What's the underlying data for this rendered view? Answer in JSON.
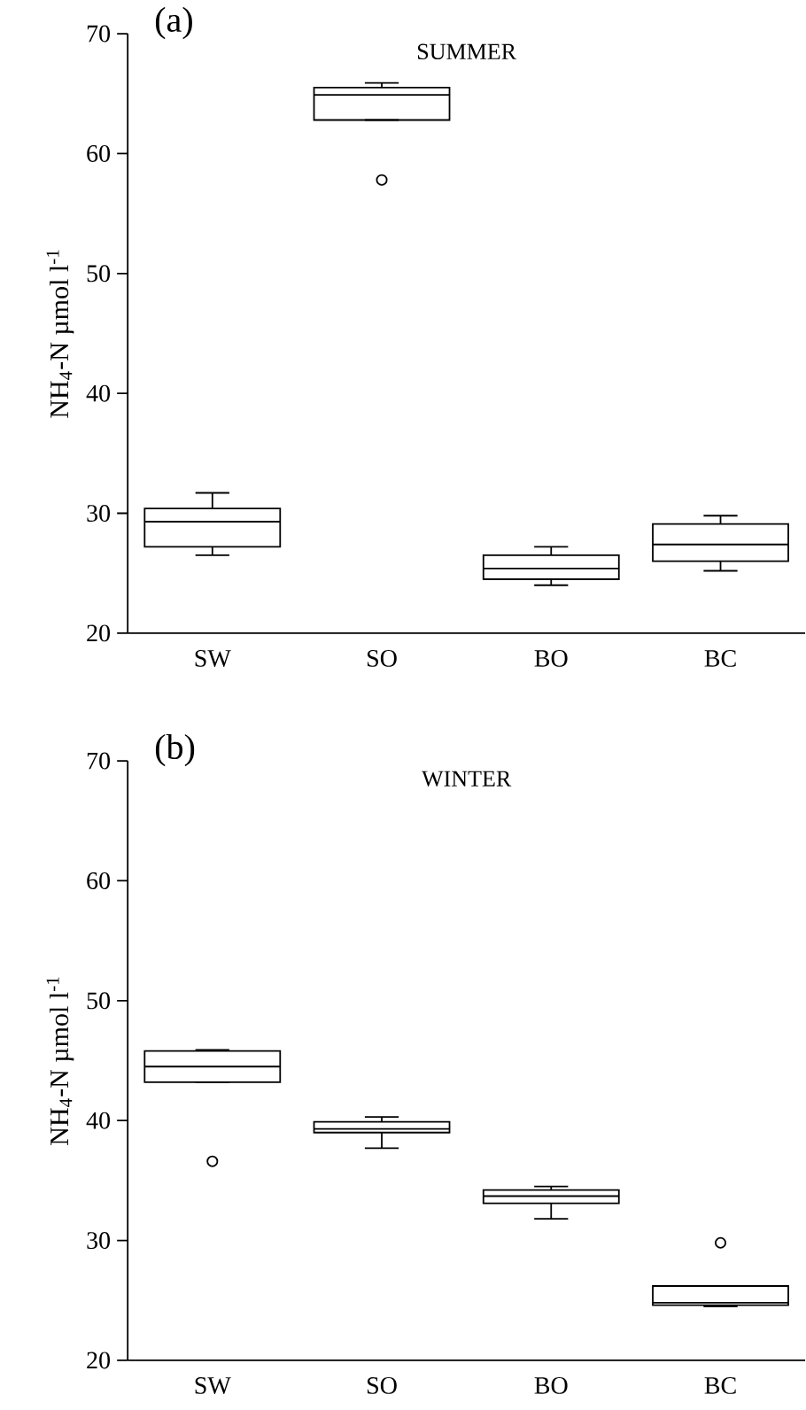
{
  "chart_data": [
    {
      "type": "box",
      "title": "(a)",
      "subtitle": "SUMMER",
      "ylabel": "NH$_{4}$-N µmol l$^{-1}$",
      "categories": [
        "SW",
        "SO",
        "BO",
        "BC"
      ],
      "ylim": [
        20,
        70
      ],
      "yticks": [
        20,
        30,
        40,
        50,
        60,
        70
      ],
      "boxes": [
        {
          "low": 26.5,
          "q1": 27.2,
          "median": 29.3,
          "q3": 30.4,
          "high": 31.7
        },
        {
          "low": 62.8,
          "q1": 62.8,
          "median": 64.9,
          "q3": 65.5,
          "high": 65.9,
          "outliers": [
            57.8
          ]
        },
        {
          "low": 24.0,
          "q1": 24.5,
          "median": 25.4,
          "q3": 26.5,
          "high": 27.2
        },
        {
          "low": 25.2,
          "q1": 26.0,
          "median": 27.4,
          "q3": 29.1,
          "high": 29.8
        }
      ]
    },
    {
      "type": "box",
      "title": "(b)",
      "subtitle": "WINTER",
      "ylabel": "NH$_{4}$-N µmol l$^{-1}$",
      "categories": [
        "SW",
        "SO",
        "BO",
        "BC"
      ],
      "ylim": [
        20,
        70
      ],
      "yticks": [
        20,
        30,
        40,
        50,
        60,
        70
      ],
      "boxes": [
        {
          "low": 43.2,
          "q1": 43.2,
          "median": 44.5,
          "q3": 45.8,
          "high": 45.9,
          "outliers": [
            36.6
          ]
        },
        {
          "low": 37.7,
          "q1": 39.0,
          "median": 39.3,
          "q3": 39.9,
          "high": 40.3
        },
        {
          "low": 31.8,
          "q1": 33.1,
          "median": 33.7,
          "q3": 34.2,
          "high": 34.5
        },
        {
          "low": 24.5,
          "q1": 24.6,
          "median": 24.8,
          "q3": 26.2,
          "high": 26.2,
          "outliers": [
            29.8
          ]
        }
      ]
    }
  ]
}
